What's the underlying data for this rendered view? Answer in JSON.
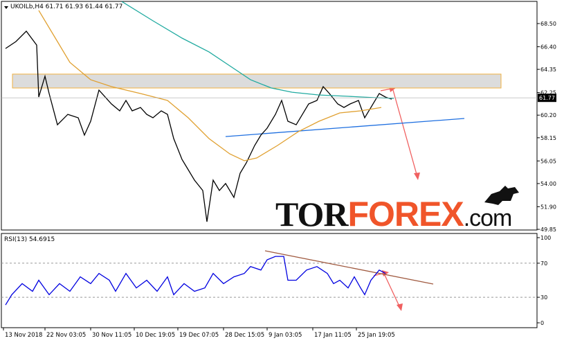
{
  "chart_data": [
    {
      "type": "line",
      "title": "UKOILb,H4  61.71 61.93 61.44 61.77",
      "xlim": [
        0,
        258
      ],
      "ylim": [
        49.79,
        70.51
      ],
      "yticks": [
        {
          "value": 68.5,
          "label": "68.50"
        },
        {
          "value": 66.4,
          "label": "66.40"
        },
        {
          "value": 64.35,
          "label": "64.35"
        },
        {
          "value": 62.25,
          "label": "62.25"
        },
        {
          "value": 60.2,
          "label": "60.20"
        },
        {
          "value": 58.15,
          "label": "58.15"
        },
        {
          "value": 56.05,
          "label": "56.05"
        },
        {
          "value": 54,
          "label": "54.00"
        },
        {
          "value": 51.9,
          "label": "51.90"
        },
        {
          "value": 49.85,
          "label": "49.85"
        }
      ],
      "last_price": 61.77,
      "zone": [
        62.66,
        63.92
      ],
      "trendline": {
        "x": [
          108,
          223
        ],
        "values": [
          58.26,
          59.9
        ],
        "color": "#1e6fe0"
      },
      "series": [
        {
          "color": "#000000",
          "x": [
            2,
            7,
            12,
            17,
            18,
            21,
            23,
            27,
            32,
            37,
            40,
            43,
            47,
            50,
            53,
            57,
            60,
            63,
            67,
            70,
            73,
            77,
            80,
            83,
            87,
            90,
            93,
            97,
            99,
            102,
            105,
            108,
            112,
            115,
            118,
            122,
            125,
            128,
            132,
            135,
            138,
            142,
            145,
            148,
            152,
            155,
            158,
            162,
            165,
            168,
            172,
            175,
            178,
            182,
            185,
            188
          ],
          "values": [
            66.24,
            66.87,
            67.81,
            66.55,
            61.84,
            63.73,
            62.16,
            59.33,
            60.27,
            59.96,
            58.39,
            59.65,
            62.47,
            61.84,
            61.22,
            60.59,
            61.53,
            60.59,
            60.9,
            60.27,
            59.96,
            60.59,
            60.27,
            58.08,
            56.19,
            55.25,
            54.31,
            53.37,
            50.54,
            54.31,
            53.37,
            54.0,
            52.74,
            54.94,
            55.88,
            57.45,
            58.39,
            59.02,
            60.27,
            61.53,
            59.65,
            59.33,
            60.27,
            61.22,
            61.53,
            62.79,
            62.16,
            61.22,
            60.9,
            61.22,
            61.53,
            59.96,
            60.9,
            62.16,
            61.84,
            61.65
          ]
        },
        {
          "color": "#e0a030",
          "x": [
            18,
            27,
            33,
            43,
            53,
            67,
            80,
            90,
            100,
            110,
            117,
            123,
            133,
            143,
            153,
            163,
            173,
            183
          ],
          "values": [
            69.69,
            66.87,
            64.98,
            63.41,
            62.79,
            62.16,
            61.53,
            59.96,
            58.08,
            56.69,
            56.07,
            56.32,
            57.45,
            58.7,
            59.65,
            60.4,
            60.59,
            60.9
          ]
        },
        {
          "color": "#20aaa0",
          "x": [
            58,
            73,
            87,
            100,
            110,
            120,
            130,
            140,
            153,
            167,
            180,
            189
          ],
          "values": [
            70.5,
            68.75,
            67.18,
            65.93,
            64.67,
            63.41,
            62.66,
            62.28,
            62.03,
            61.91,
            61.78,
            61.72
          ]
        }
      ]
    },
    {
      "type": "line",
      "title": "RSI(13) 54.6915",
      "xlim": [
        0,
        258
      ],
      "ylim": [
        -5.7,
        104.9
      ],
      "yticks": [
        100,
        70,
        30,
        0
      ],
      "levels": [
        70,
        30
      ],
      "xticks": [
        {
          "value": 1,
          "label": "13 Nov 2018"
        },
        {
          "value": 21,
          "label": "22 Nov 03:05"
        },
        {
          "value": 43,
          "label": "30 Nov 11:05"
        },
        {
          "value": 64,
          "label": "10 Dec 19:05"
        },
        {
          "value": 85,
          "label": "19 Dec 07:05"
        },
        {
          "value": 107,
          "label": "28 Dec 15:05"
        },
        {
          "value": 128,
          "label": "9 Jan 03:05"
        },
        {
          "value": 150,
          "label": "17 Jan 11:05"
        },
        {
          "value": 171,
          "label": "25 Jan 19:05"
        }
      ],
      "trendline": {
        "x": [
          127,
          208
        ],
        "values": [
          84.6,
          45.5
        ],
        "color": "#a05a40"
      },
      "series": [
        {
          "color": "#0000e0",
          "x": [
            2,
            5,
            10,
            15,
            18,
            23,
            28,
            33,
            38,
            43,
            47,
            52,
            55,
            60,
            65,
            70,
            75,
            80,
            83,
            88,
            93,
            98,
            102,
            107,
            112,
            117,
            120,
            125,
            128,
            132,
            136,
            138,
            142,
            147,
            152,
            157,
            160,
            163,
            167,
            170,
            173,
            175,
            178,
            182,
            185
          ],
          "values": [
            21,
            33,
            46,
            37,
            50,
            33,
            46,
            37,
            54,
            46,
            58,
            50,
            37,
            58,
            41,
            50,
            37,
            54,
            33,
            46,
            37,
            41,
            58,
            46,
            54,
            58,
            66,
            62,
            74,
            78,
            78,
            50,
            50,
            62,
            66,
            58,
            46,
            50,
            41,
            54,
            41,
            33,
            50,
            62,
            58
          ]
        }
      ]
    }
  ],
  "watermark": [
    "TOR",
    "FOREX",
    ".com"
  ]
}
